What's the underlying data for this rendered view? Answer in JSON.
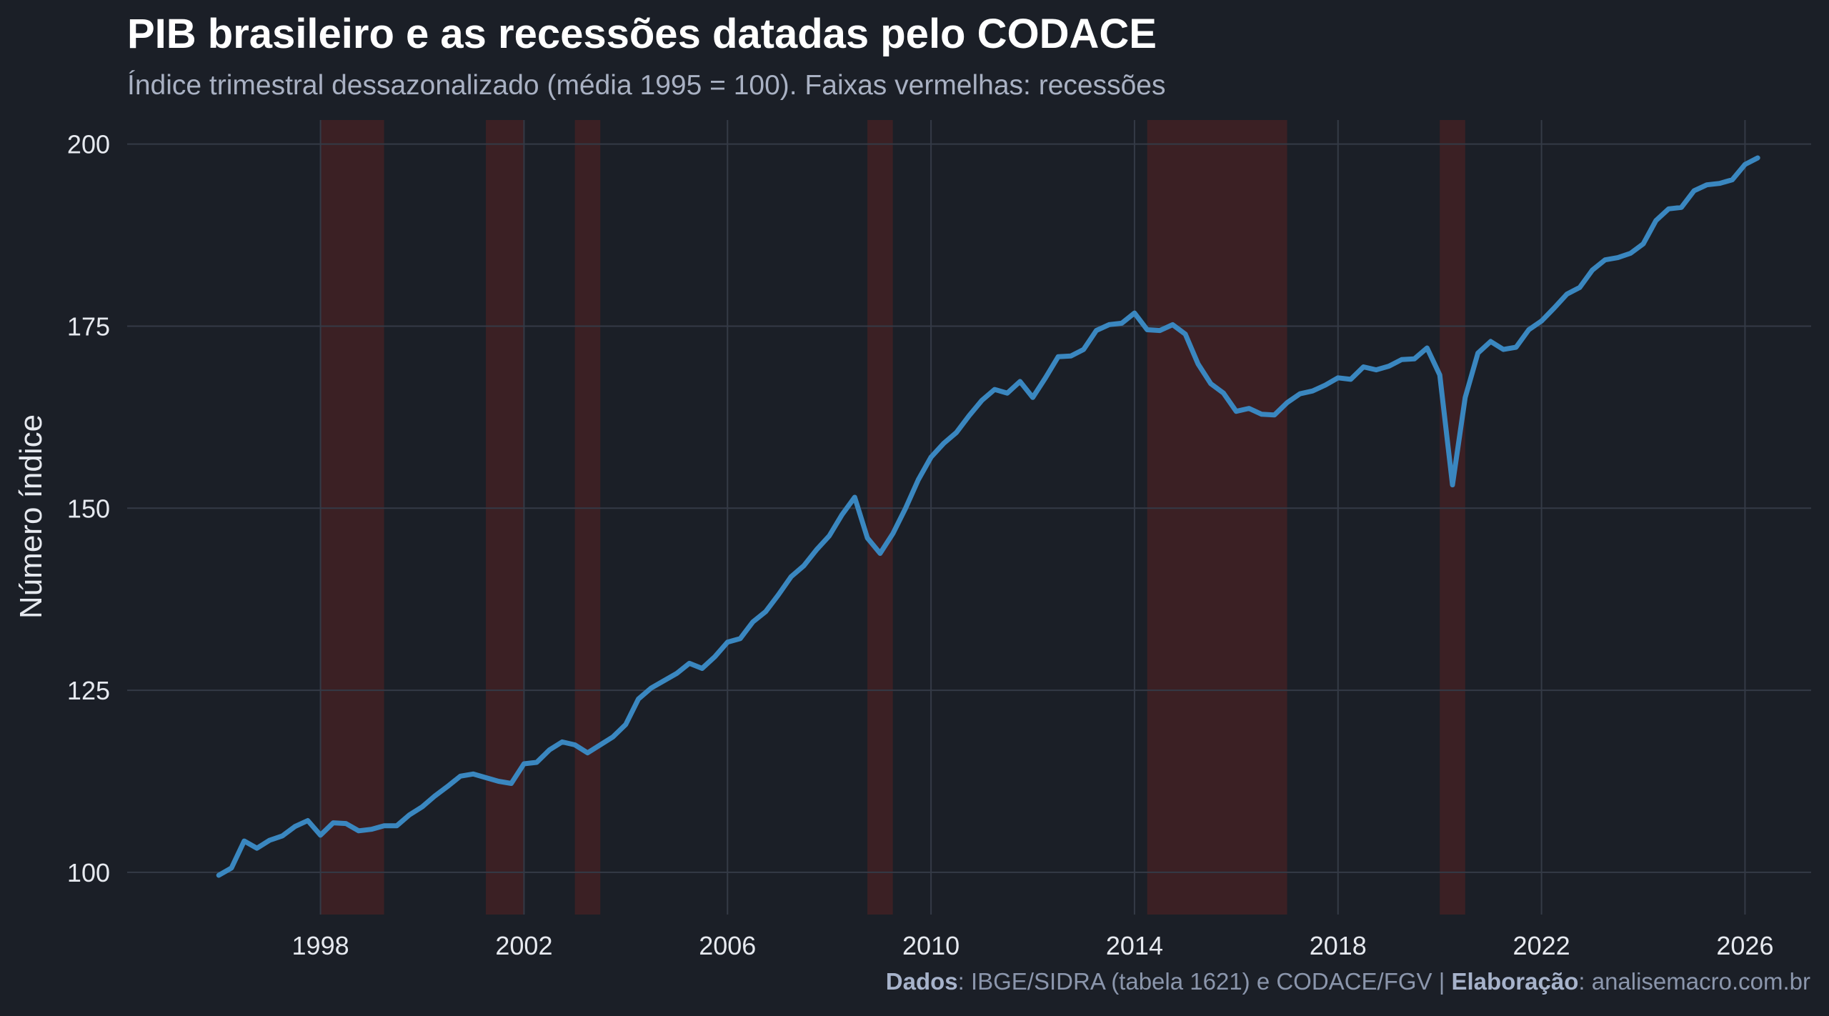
{
  "title": "PIB brasileiro e as recessões datadas pelo CODACE",
  "subtitle": "Índice trimestral dessazonalizado (média 1995 = 100). Faixas vermelhas: recessões",
  "caption": {
    "data_label": "Dados",
    "data_text": ": IBGE/SIDRA (tabela 1621) e CODACE/FGV | ",
    "author_label": "Elaboração",
    "author_text": ": analisemacro.com.br"
  },
  "colors": {
    "background": "#1b1f27",
    "line": "#3a87c0",
    "recession_band": "#3b2024",
    "grid": "#343a46"
  },
  "chart_data": {
    "type": "line",
    "title": "PIB brasileiro e as recessões datadas pelo CODACE",
    "subtitle": "Índice trimestral dessazonalizado (média 1995 = 100). Faixas vermelhas: recessões",
    "xlabel": "",
    "ylabel": "Número índice",
    "xlim": [
      1994.2,
      2027.3
    ],
    "ylim": [
      94.2,
      203.3
    ],
    "x_ticks": [
      1998,
      2002,
      2006,
      2010,
      2014,
      2018,
      2022,
      2026
    ],
    "x_tick_labels": [
      "1998",
      "2002",
      "2006",
      "2010",
      "2014",
      "2018",
      "2022",
      "2026"
    ],
    "y_ticks": [
      100,
      125,
      150,
      175,
      200
    ],
    "y_tick_labels": [
      "100",
      "125",
      "150",
      "175",
      "200"
    ],
    "grid": true,
    "legend": "none",
    "recessions": [
      {
        "start": "1998-Q1",
        "end": "1999-Q1",
        "start_year": 1998.0,
        "end_year": 1999.25
      },
      {
        "start": "2001-Q2",
        "end": "2001-Q4",
        "start_year": 2001.25,
        "end_year": 2002.0
      },
      {
        "start": "2003-Q1",
        "end": "2003-Q2",
        "start_year": 2003.0,
        "end_year": 2003.5
      },
      {
        "start": "2008-Q4",
        "end": "2009-Q1",
        "start_year": 2008.75,
        "end_year": 2009.25
      },
      {
        "start": "2014-Q2",
        "end": "2016-Q4",
        "start_year": 2014.25,
        "end_year": 2017.0
      },
      {
        "start": "2020-Q1",
        "end": "2020-Q2",
        "start_year": 2020.0,
        "end_year": 2020.5
      }
    ],
    "series": [
      {
        "start": 1996.0,
        "step": 0.25,
        "values": [
          99.6,
          100.6,
          104.3,
          103.3,
          104.4,
          105.0,
          106.3,
          107.1,
          105.1,
          106.8,
          106.7,
          105.7,
          105.9,
          106.4,
          106.4,
          107.9,
          109.0,
          110.5,
          111.8,
          113.2,
          113.5,
          113.0,
          112.5,
          112.2,
          114.9,
          115.1,
          116.8,
          117.9,
          117.5,
          116.4,
          117.5,
          118.6,
          120.3,
          123.8,
          125.3,
          126.3,
          127.3,
          128.7,
          128.0,
          129.6,
          131.6,
          132.1,
          134.4,
          135.8,
          138.1,
          140.6,
          142.1,
          144.3,
          146.2,
          149.1,
          151.5,
          145.9,
          143.8,
          146.5,
          150.0,
          153.9,
          157.0,
          158.9,
          160.4,
          162.7,
          164.8,
          166.3,
          165.8,
          167.4,
          165.2,
          167.9,
          170.8,
          170.9,
          171.8,
          174.4,
          175.2,
          175.4,
          176.8,
          174.5,
          174.4,
          175.2,
          173.9,
          169.8,
          167.1,
          165.8,
          163.3,
          163.7,
          162.9,
          162.8,
          164.5,
          165.7,
          166.1,
          166.9,
          167.9,
          167.7,
          169.4,
          169.0,
          169.5,
          170.4,
          170.5,
          172.0,
          168.3,
          153.2,
          165.2,
          171.3,
          172.9,
          171.8,
          172.1,
          174.5,
          175.7,
          177.5,
          179.4,
          180.3,
          182.7,
          184.1,
          184.4,
          185.0,
          186.3,
          189.5,
          191.1,
          191.3,
          193.6,
          194.4,
          194.6,
          195.1,
          197.2,
          198.1
        ]
      }
    ]
  }
}
